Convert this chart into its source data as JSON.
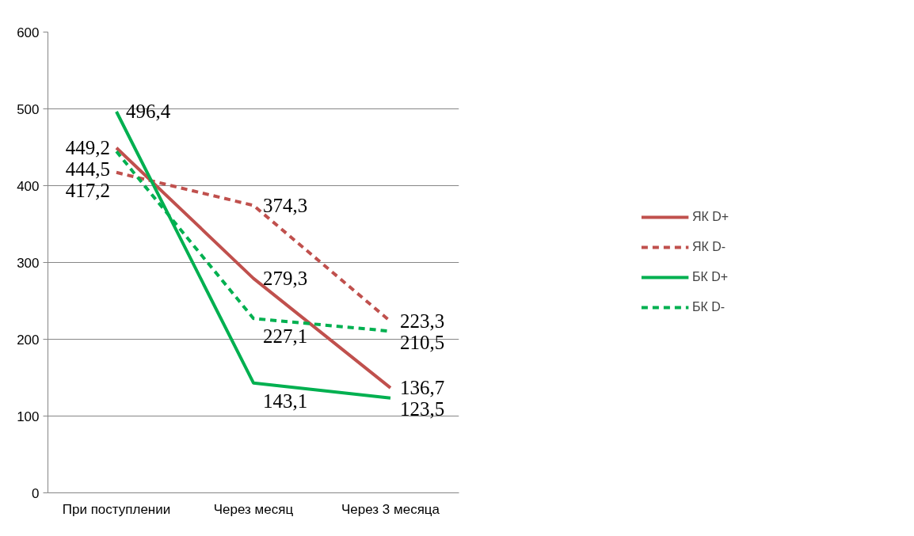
{
  "chart_data": {
    "type": "line",
    "categories": [
      "При поступлении",
      "Через месяц",
      "Через 3 месяца"
    ],
    "series": [
      {
        "name": "ЯК D+",
        "color": "#c0504d",
        "line_style": "solid",
        "values": [
          449.2,
          279.3,
          136.7
        ],
        "value_labels": [
          "449,2",
          "279,3",
          "136,7"
        ]
      },
      {
        "name": "ЯК D-",
        "color": "#c0504d",
        "line_style": "dashed",
        "values": [
          417.2,
          374.3,
          223.3
        ],
        "value_labels": [
          "417,2",
          "374,3",
          "223,3"
        ]
      },
      {
        "name": "БК D+",
        "color": "#00b050",
        "line_style": "solid",
        "values": [
          496.4,
          143.1,
          123.5
        ],
        "value_labels": [
          "496,4",
          "143,1",
          "123,5"
        ]
      },
      {
        "name": "БК D-",
        "color": "#00b050",
        "line_style": "dashed",
        "values": [
          444.5,
          227.1,
          210.5
        ],
        "value_labels": [
          "444,5",
          "227,1",
          "210,5"
        ]
      }
    ],
    "ylim": [
      0,
      600
    ],
    "yticks": [
      0,
      100,
      200,
      300,
      400,
      500,
      600
    ],
    "grid": "y",
    "legend": "right",
    "marker": "none"
  }
}
